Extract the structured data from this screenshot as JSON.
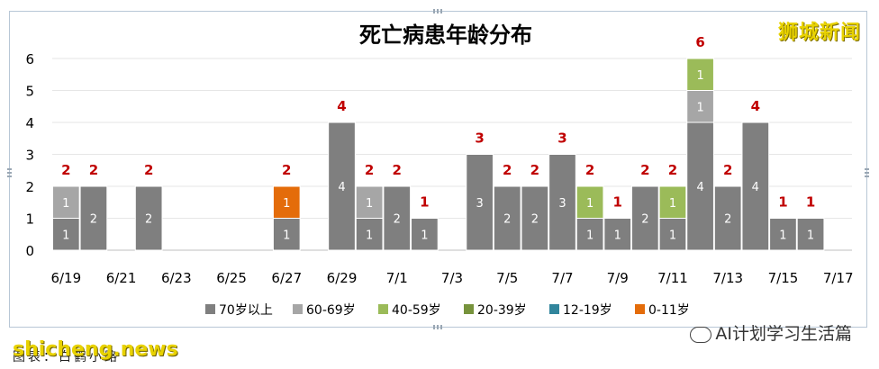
{
  "chart_data": {
    "type": "bar",
    "stacked": true,
    "title": "死亡病患年龄分布",
    "xlabel": "",
    "ylabel": "",
    "ylim": [
      0,
      6
    ],
    "yticks": [
      0,
      1,
      2,
      3,
      4,
      5,
      6
    ],
    "grid": true,
    "legend_position": "bottom",
    "x_tick_labels": [
      "6/19",
      "6/21",
      "6/23",
      "6/25",
      "6/27",
      "6/29",
      "7/1",
      "7/3",
      "7/5",
      "7/7",
      "7/9",
      "7/11",
      "7/13",
      "7/15",
      "7/17"
    ],
    "categories": [
      "6/19",
      "6/20",
      "6/21",
      "6/22",
      "6/23",
      "6/24",
      "6/25",
      "6/26",
      "6/27",
      "6/28",
      "6/29",
      "6/30",
      "7/1",
      "7/2",
      "7/3",
      "7/4",
      "7/5",
      "7/6",
      "7/7",
      "7/8",
      "7/9",
      "7/10",
      "7/11",
      "7/12",
      "7/13",
      "7/14",
      "7/15",
      "7/16",
      "7/17"
    ],
    "totals": [
      2,
      2,
      null,
      2,
      null,
      null,
      null,
      null,
      2,
      null,
      4,
      2,
      2,
      1,
      null,
      3,
      2,
      2,
      3,
      2,
      1,
      2,
      2,
      6,
      2,
      4,
      1,
      1,
      null
    ],
    "series": [
      {
        "name": "70岁以上",
        "color": "#7f7f7f",
        "values": [
          1,
          2,
          0,
          2,
          0,
          0,
          0,
          0,
          1,
          0,
          4,
          1,
          2,
          1,
          0,
          3,
          2,
          2,
          3,
          1,
          1,
          2,
          1,
          4,
          2,
          4,
          1,
          1,
          0
        ]
      },
      {
        "name": "60-69岁",
        "color": "#a6a6a6",
        "values": [
          1,
          0,
          0,
          0,
          0,
          0,
          0,
          0,
          0,
          0,
          0,
          1,
          0,
          0,
          0,
          0,
          0,
          0,
          0,
          0,
          0,
          0,
          0,
          1,
          0,
          0,
          0,
          0,
          0
        ]
      },
      {
        "name": "40-59岁",
        "color": "#9bbb59",
        "values": [
          0,
          0,
          0,
          0,
          0,
          0,
          0,
          0,
          0,
          0,
          0,
          0,
          0,
          0,
          0,
          0,
          0,
          0,
          0,
          1,
          0,
          0,
          1,
          1,
          0,
          0,
          0,
          0,
          0
        ]
      },
      {
        "name": "20-39岁",
        "color": "#77933c",
        "values": [
          0,
          0,
          0,
          0,
          0,
          0,
          0,
          0,
          0,
          0,
          0,
          0,
          0,
          0,
          0,
          0,
          0,
          0,
          0,
          0,
          0,
          0,
          0,
          0,
          0,
          0,
          0,
          0,
          0
        ]
      },
      {
        "name": "12-19岁",
        "color": "#31859c",
        "values": [
          0,
          0,
          0,
          0,
          0,
          0,
          0,
          0,
          0,
          0,
          0,
          0,
          0,
          0,
          0,
          0,
          0,
          0,
          0,
          0,
          0,
          0,
          0,
          0,
          0,
          0,
          0,
          0,
          0
        ]
      },
      {
        "name": "0-11岁",
        "color": "#e46c0a",
        "values": [
          0,
          0,
          0,
          0,
          0,
          0,
          0,
          0,
          1,
          0,
          0,
          0,
          0,
          0,
          0,
          0,
          0,
          0,
          0,
          0,
          0,
          0,
          0,
          0,
          0,
          0,
          0,
          0,
          0
        ]
      }
    ],
    "total_label_color": "#c00000"
  },
  "watermarks": {
    "top_right": "狮城新闻",
    "bottom_left": "shicheng.news",
    "bottom_right": "AI计划学习生活篇",
    "source": "图表：白鹤小路"
  }
}
